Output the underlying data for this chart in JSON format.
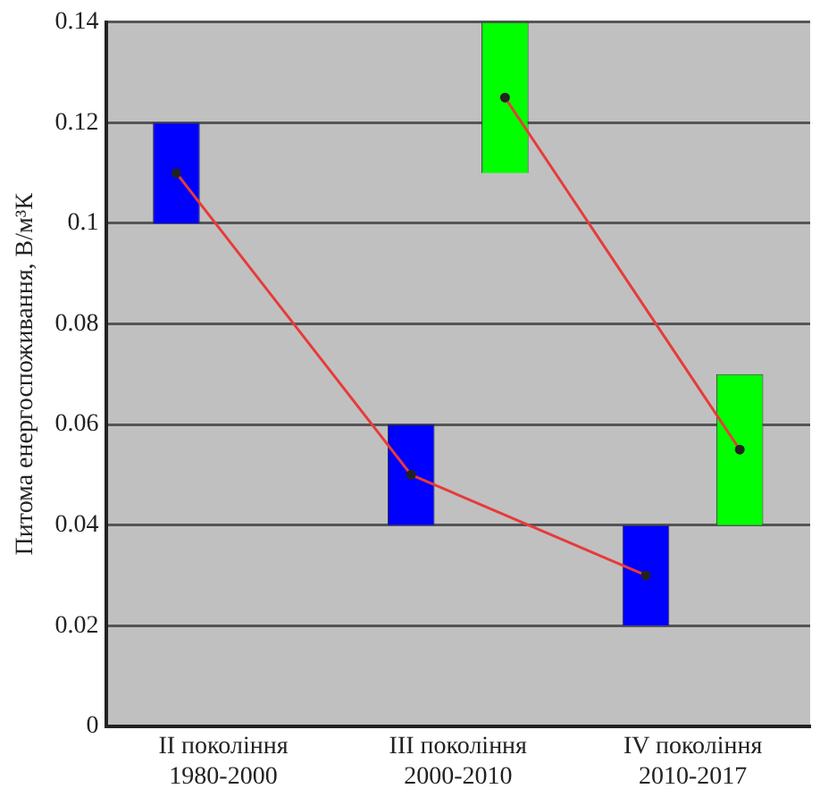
{
  "chart_data": {
    "type": "bar",
    "ylabel": "Питома енергоспоживання, В/м³К",
    "categories": [
      "II покоління\n1980-2000",
      "III покоління\n2000-2010",
      "IV покоління\n2010-2017"
    ],
    "series": [
      {
        "color": "#0000ff",
        "base": [
          0.1,
          0.04,
          0.02
        ],
        "values": [
          0.02,
          0.02,
          0.02
        ]
      },
      {
        "color": "#00ff00",
        "base": [
          null,
          0.11,
          0.04
        ],
        "values": [
          null,
          0.03,
          0.03
        ]
      },
      {
        "type": "line",
        "color": "#e83a3a",
        "values": [
          0.11,
          0.05,
          0.03
        ]
      },
      {
        "type": "line",
        "color": "#e83a3a",
        "values": [
          null,
          0.125,
          0.055
        ]
      }
    ],
    "ylim": [
      0,
      0.14
    ],
    "yticks": [
      0,
      0.02,
      0.04,
      0.06,
      0.08,
      0.1,
      0.12,
      0.14
    ],
    "grid": "y",
    "legend": false,
    "marker": "circle",
    "line_style": "solid"
  }
}
